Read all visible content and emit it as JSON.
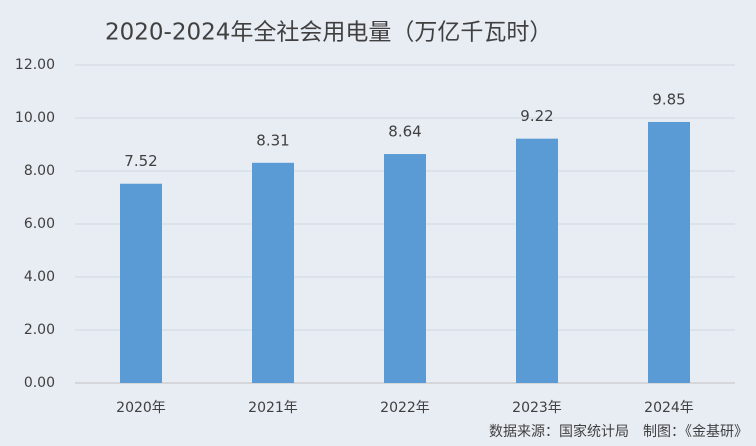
{
  "chart_data": {
    "type": "bar",
    "title": "2020-2024年全社会用电量（万亿千瓦时）",
    "categories": [
      "2020年",
      "2021年",
      "2022年",
      "2023年",
      "2024年"
    ],
    "values": [
      7.52,
      8.31,
      8.64,
      9.22,
      9.85
    ],
    "color": "#5b9bd5",
    "ylim": [
      0,
      12
    ],
    "yticks": [
      {
        "value": 0,
        "label": "0.00"
      },
      {
        "value": 2,
        "label": "2.00"
      },
      {
        "value": 4,
        "label": "4.00"
      },
      {
        "value": 6,
        "label": "6.00"
      },
      {
        "value": 8,
        "label": "8.00"
      },
      {
        "value": 10,
        "label": "10.00"
      },
      {
        "value": 12,
        "label": "12.00"
      }
    ],
    "grid": true,
    "source": "数据来源：国家统计局　制图：《金基研》"
  }
}
